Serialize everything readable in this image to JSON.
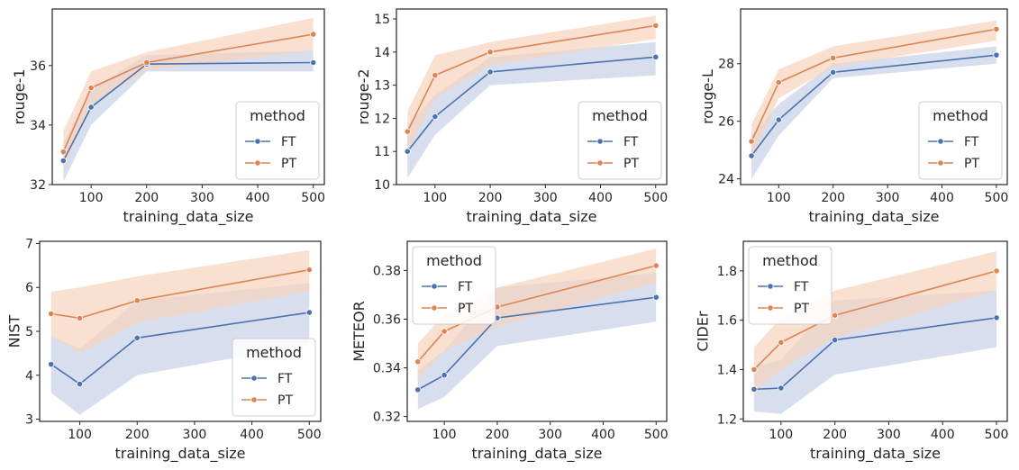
{
  "colors": {
    "FT": "#4c72b0",
    "PT": "#dd8452",
    "band_FT": "#c6d2e8",
    "band_PT": "#f6d3bd"
  },
  "chart_data": [
    {
      "type": "line",
      "xlabel": "training_data_size",
      "ylabel": "rouge-1",
      "x": [
        50,
        100,
        200,
        500
      ],
      "xlim": [
        30,
        520
      ],
      "ylim": [
        32,
        37.9
      ],
      "xticks": [
        "100",
        "200",
        "300",
        "400",
        "500"
      ],
      "yticks": [
        "32",
        "34",
        "36"
      ],
      "legend": {
        "title": "method",
        "placement": "lower-right"
      },
      "series": [
        {
          "name": "FT",
          "values": [
            32.8,
            34.6,
            36.05,
            36.1
          ],
          "band_low": [
            32.1,
            34.0,
            35.8,
            35.8
          ],
          "band_high": [
            33.4,
            35.2,
            36.35,
            36.5
          ]
        },
        {
          "name": "PT",
          "values": [
            33.1,
            35.25,
            36.1,
            37.05
          ],
          "band_low": [
            32.5,
            34.7,
            35.85,
            36.5
          ],
          "band_high": [
            33.8,
            35.8,
            36.45,
            37.6
          ]
        }
      ]
    },
    {
      "type": "line",
      "xlabel": "training_data_size",
      "ylabel": "rouge-2",
      "x": [
        50,
        100,
        200,
        500
      ],
      "xlim": [
        30,
        520
      ],
      "ylim": [
        10,
        15.3
      ],
      "xticks": [
        "100",
        "200",
        "300",
        "400",
        "500"
      ],
      "yticks": [
        "10",
        "11",
        "12",
        "13",
        "14",
        "15"
      ],
      "legend": {
        "title": "method",
        "placement": "lower-right"
      },
      "series": [
        {
          "name": "FT",
          "values": [
            11.0,
            12.05,
            13.4,
            13.85
          ],
          "band_low": [
            10.2,
            11.5,
            13.0,
            13.3
          ],
          "band_high": [
            11.8,
            12.7,
            13.85,
            14.3
          ]
        },
        {
          "name": "PT",
          "values": [
            11.6,
            13.3,
            14.0,
            14.8
          ],
          "band_low": [
            11.0,
            12.6,
            13.6,
            14.4
          ],
          "band_high": [
            12.2,
            13.9,
            14.3,
            15.1
          ]
        }
      ]
    },
    {
      "type": "line",
      "xlabel": "training_data_size",
      "ylabel": "rouge-L",
      "x": [
        50,
        100,
        200,
        500
      ],
      "xlim": [
        30,
        520
      ],
      "ylim": [
        23.8,
        29.9
      ],
      "xticks": [
        "100",
        "200",
        "300",
        "400",
        "500"
      ],
      "yticks": [
        "24",
        "26",
        "28"
      ],
      "legend": {
        "title": "method",
        "placement": "lower-right"
      },
      "series": [
        {
          "name": "FT",
          "values": [
            24.8,
            26.05,
            27.7,
            28.3
          ],
          "band_low": [
            24.0,
            25.5,
            27.5,
            28.0
          ],
          "band_high": [
            25.5,
            26.6,
            28.0,
            28.6
          ]
        },
        {
          "name": "PT",
          "values": [
            25.3,
            27.35,
            28.2,
            29.2
          ],
          "band_low": [
            24.7,
            26.8,
            27.9,
            28.8
          ],
          "band_high": [
            25.9,
            27.8,
            28.6,
            29.5
          ]
        }
      ]
    },
    {
      "type": "line",
      "xlabel": "training_data_size",
      "ylabel": "NIST",
      "x": [
        50,
        100,
        200,
        500
      ],
      "xlim": [
        30,
        520
      ],
      "ylim": [
        2.95,
        7.05
      ],
      "xticks": [
        "100",
        "200",
        "300",
        "400",
        "500"
      ],
      "yticks": [
        "3",
        "4",
        "5",
        "6",
        "7"
      ],
      "legend": {
        "title": "method",
        "placement": "lower-right"
      },
      "series": [
        {
          "name": "FT",
          "values": [
            4.25,
            3.8,
            4.85,
            5.43
          ],
          "band_low": [
            3.6,
            3.1,
            4.0,
            4.7
          ],
          "band_high": [
            4.9,
            4.6,
            5.7,
            6.1
          ]
        },
        {
          "name": "PT",
          "values": [
            5.4,
            5.3,
            5.7,
            6.4
          ],
          "band_low": [
            4.9,
            4.5,
            5.2,
            5.9
          ],
          "band_high": [
            5.9,
            6.0,
            6.25,
            6.85
          ]
        }
      ]
    },
    {
      "type": "line",
      "xlabel": "training_data_size",
      "ylabel": "METEOR",
      "x": [
        50,
        100,
        200,
        500
      ],
      "xlim": [
        30,
        520
      ],
      "ylim": [
        0.318,
        0.392
      ],
      "xticks": [
        "100",
        "200",
        "300",
        "400",
        "500"
      ],
      "yticks": [
        "0.32",
        "0.34",
        "0.36",
        "0.38"
      ],
      "legend": {
        "title": "method",
        "placement": "upper-left"
      },
      "series": [
        {
          "name": "FT",
          "values": [
            0.331,
            0.337,
            0.3605,
            0.369
          ],
          "band_low": [
            0.323,
            0.328,
            0.349,
            0.359
          ],
          "band_high": [
            0.339,
            0.347,
            0.373,
            0.379
          ]
        },
        {
          "name": "PT",
          "values": [
            0.3425,
            0.355,
            0.365,
            0.382
          ],
          "band_low": [
            0.335,
            0.347,
            0.357,
            0.375
          ],
          "band_high": [
            0.35,
            0.362,
            0.373,
            0.389
          ]
        }
      ]
    },
    {
      "type": "line",
      "xlabel": "training_data_size",
      "ylabel": "CIDEr",
      "x": [
        50,
        100,
        200,
        500
      ],
      "xlim": [
        30,
        520
      ],
      "ylim": [
        1.19,
        1.92
      ],
      "xticks": [
        "100",
        "200",
        "300",
        "400",
        "500"
      ],
      "yticks": [
        "1.2",
        "1.4",
        "1.6",
        "1.8"
      ],
      "legend": {
        "title": "method",
        "placement": "upper-left"
      },
      "series": [
        {
          "name": "FT",
          "values": [
            1.32,
            1.325,
            1.52,
            1.61
          ],
          "band_low": [
            1.23,
            1.22,
            1.38,
            1.49
          ],
          "band_high": [
            1.41,
            1.44,
            1.68,
            1.72
          ]
        },
        {
          "name": "PT",
          "values": [
            1.4,
            1.51,
            1.62,
            1.8
          ],
          "band_low": [
            1.31,
            1.4,
            1.53,
            1.72
          ],
          "band_high": [
            1.49,
            1.61,
            1.72,
            1.88
          ]
        }
      ]
    }
  ]
}
